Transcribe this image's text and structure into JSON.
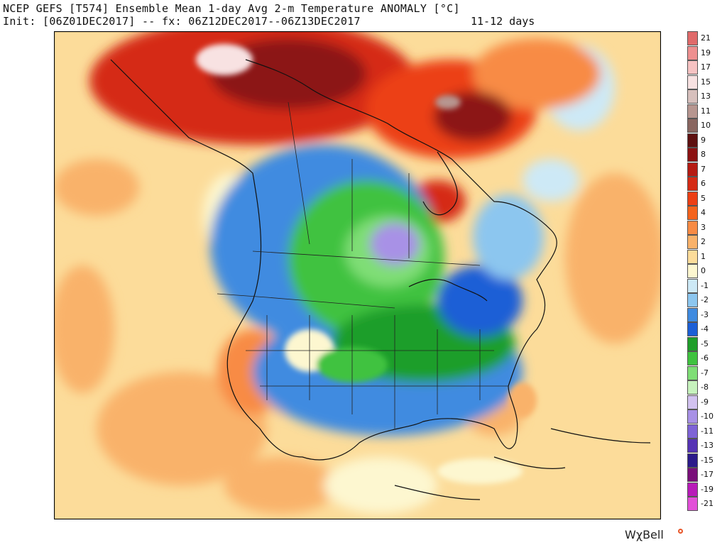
{
  "header": {
    "title": "NCEP GEFS [T574] Ensemble Mean 1-day Avg 2-m Temperature ANOMALY [°C]",
    "subtitle": "Init: [06Z01DEC2017] -- fx: 06Z12DEC2017--06Z13DEC2017",
    "lead": "11-12 days"
  },
  "legend": {
    "entries": [
      {
        "label": "21",
        "color": "#e06a6a"
      },
      {
        "label": "19",
        "color": "#ee9090"
      },
      {
        "label": "17",
        "color": "#f6c2c2"
      },
      {
        "label": "15",
        "color": "#f8e2e2"
      },
      {
        "label": "13",
        "color": "#d7c0bd"
      },
      {
        "label": "11",
        "color": "#b79690"
      },
      {
        "label": "10",
        "color": "#8a6660"
      },
      {
        "label": "9",
        "color": "#5e1010"
      },
      {
        "label": "8",
        "color": "#8c1212"
      },
      {
        "label": "7",
        "color": "#b51a12"
      },
      {
        "label": "6",
        "color": "#d52a14"
      },
      {
        "label": "5",
        "color": "#ec3f14"
      },
      {
        "label": "4",
        "color": "#f4631c"
      },
      {
        "label": "3",
        "color": "#f88b44"
      },
      {
        "label": "2",
        "color": "#f9b26a"
      },
      {
        "label": "1",
        "color": "#fcdc9a"
      },
      {
        "label": "0",
        "color": "#fdf7d0"
      },
      {
        "label": "-1",
        "color": "#cde9f6"
      },
      {
        "label": "-2",
        "color": "#8cc6ef"
      },
      {
        "label": "-3",
        "color": "#3f8be0"
      },
      {
        "label": "-4",
        "color": "#1c5fd6"
      },
      {
        "label": "-5",
        "color": "#1f9e2a"
      },
      {
        "label": "-6",
        "color": "#3fc23f"
      },
      {
        "label": "-7",
        "color": "#7fde76"
      },
      {
        "label": "-8",
        "color": "#c6f2bd"
      },
      {
        "label": "-9",
        "color": "#d2c2f0"
      },
      {
        "label": "-10",
        "color": "#a891e6"
      },
      {
        "label": "-11",
        "color": "#7e63d6"
      },
      {
        "label": "-13",
        "color": "#5533b5"
      },
      {
        "label": "-15",
        "color": "#2b1a8a"
      },
      {
        "label": "-17",
        "color": "#7a0f7a"
      },
      {
        "label": "-19",
        "color": "#b81ab8"
      },
      {
        "label": "-21",
        "color": "#e24fd8"
      }
    ]
  },
  "brand": {
    "name": "WχBell"
  }
}
